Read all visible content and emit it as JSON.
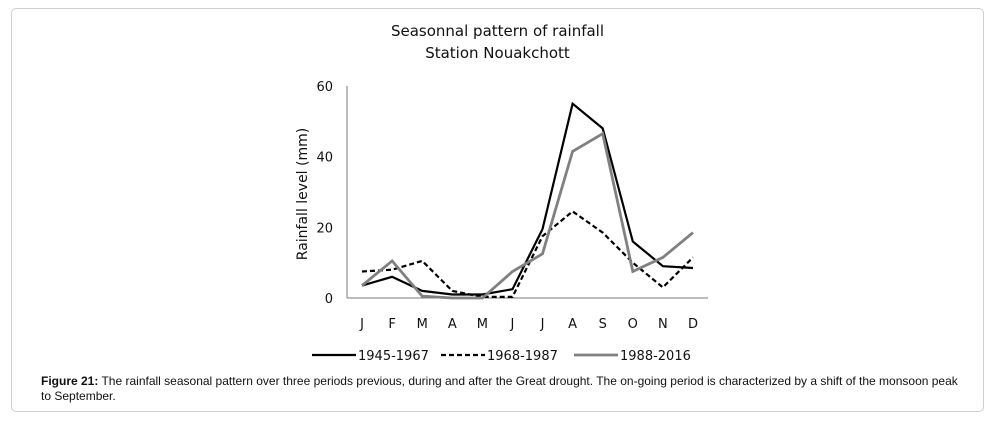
{
  "chart_data": {
    "type": "line",
    "title": "Seasonnal pattern of rainfall",
    "subtitle": "Station Nouakchott",
    "ylabel": "Rainfall  level (mm)",
    "xlabel": "",
    "categories": [
      "J",
      "F",
      "M",
      "A",
      "M",
      "J",
      "J",
      "A",
      "S",
      "O",
      "N",
      "D"
    ],
    "ylim": [
      0,
      60
    ],
    "yticks": [
      0,
      20,
      40,
      60
    ],
    "grid": false,
    "legend_position": "bottom",
    "series": [
      {
        "name": "1945-1967",
        "style": "solid",
        "color": "#000000",
        "values": [
          3.5,
          6,
          2,
          1,
          1,
          2.5,
          19.5,
          55,
          48,
          16,
          9,
          8.5
        ]
      },
      {
        "name": "1968-1987",
        "style": "dashed",
        "color": "#000000",
        "values": [
          7.5,
          8,
          10.5,
          2,
          0.3,
          0.3,
          17.5,
          24.5,
          18.5,
          10,
          3,
          11.5
        ]
      },
      {
        "name": "1988-2016",
        "style": "solid",
        "color": "#808080",
        "values": [
          3.5,
          10.5,
          0.5,
          0,
          0,
          7.5,
          12.5,
          41.5,
          46.5,
          7.5,
          11.5,
          18.5
        ]
      }
    ]
  },
  "caption": {
    "label": "Figure 21:",
    "text": " The rainfall seasonal pattern over three periods previous, during and after the Great drought. The on-going period is characterized by a shift of the monsoon peak to September."
  }
}
